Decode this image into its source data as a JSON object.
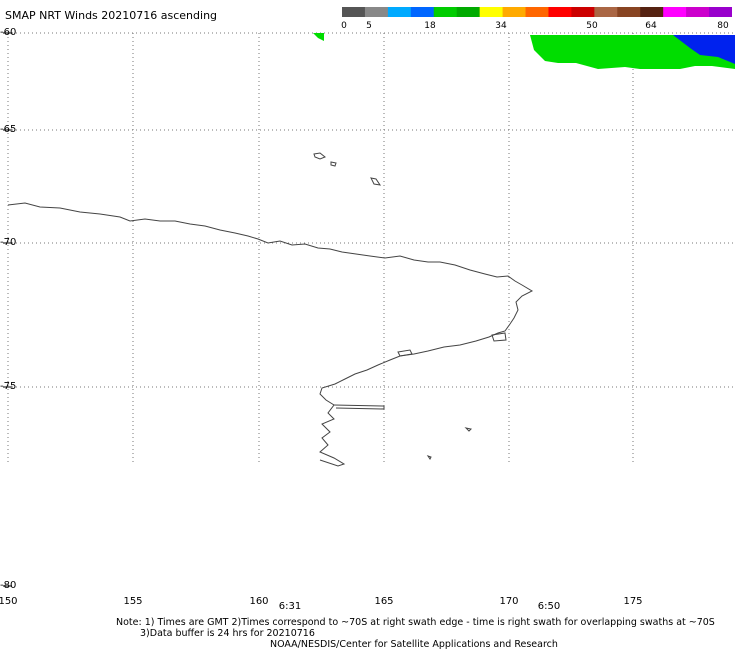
{
  "title": "SMAP NRT Winds 20210716 ascending",
  "colorbar": {
    "labels": [
      "0",
      "5",
      "18",
      "34",
      "50",
      "64",
      "80"
    ],
    "segments": [
      "#555555",
      "#888888",
      "#00aaff",
      "#0066ff",
      "#00cc00",
      "#00aa00",
      "#ffff00",
      "#ffaa00",
      "#ff6600",
      "#ff0000",
      "#cc0000",
      "#aa6644",
      "#884422",
      "#552211",
      "#ff00ff",
      "#cc00cc",
      "#9900cc"
    ]
  },
  "axes": {
    "lat_labels": [
      "-60",
      "-65",
      "-70",
      "-75",
      "-80"
    ],
    "lon_labels": [
      "150",
      "155",
      "160",
      "165",
      "170",
      "175"
    ],
    "time_labels": [
      "6:31",
      "6:50"
    ]
  },
  "notes": {
    "line1": "Note: 1) Times are GMT 2)Times correspond to ~70S at right swath edge - time is right swath for overlapping swaths at ~70S",
    "line2": "3)Data buffer is 24 hrs for 20210716",
    "credit": "NOAA/NESDIS/Center for Satellite Applications and Research"
  },
  "colors": {
    "wind_green": "#00dd00",
    "wind_blue": "#0022ee",
    "coastline": "#444444",
    "grid": "#777777"
  }
}
